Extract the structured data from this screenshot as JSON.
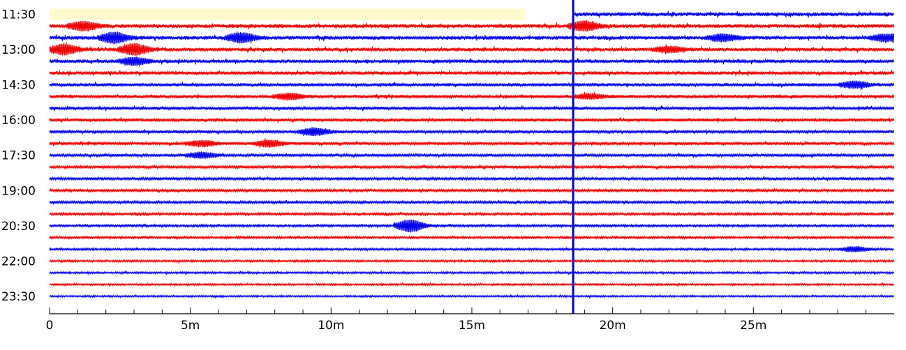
{
  "chart_data": {
    "type": "line",
    "title": "",
    "xlabel": "",
    "ylabel": "",
    "x_unit": "minutes",
    "xlim": [
      0,
      30
    ],
    "x_major_ticks": [
      0,
      5,
      10,
      15,
      20,
      25
    ],
    "x_major_labels": [
      "0",
      "5m",
      "10m",
      "15m",
      "20m",
      "25m"
    ],
    "x_minor_tick_step": 1,
    "row_interval_minutes": 30,
    "row_start_times": [
      "11:30",
      "12:00",
      "12:30",
      "13:00",
      "13:30",
      "14:00",
      "14:30",
      "15:00",
      "15:30",
      "16:00",
      "16:30",
      "17:00",
      "17:30",
      "18:00",
      "18:30",
      "19:00",
      "19:30",
      "20:00",
      "20:30",
      "21:00",
      "21:30",
      "22:00",
      "22:30",
      "23:00",
      "23:30"
    ],
    "y_tick_labels": [
      "11:30",
      "13:00",
      "14:30",
      "16:00",
      "17:30",
      "19:00",
      "20:30",
      "22:00",
      "23:30"
    ],
    "row_colors": [
      "#0000ee",
      "#ee0000"
    ],
    "colors": {
      "trace_blue": "#0000ee",
      "trace_red": "#ee0000",
      "cursor": "#0000cc",
      "no_data": "#fffacd",
      "axis": "#000000"
    },
    "no_data_gap": {
      "row": "11:30",
      "x_start": 0,
      "x_end": 16.9
    },
    "current_time_marker_minute": 18.6,
    "grid": false,
    "legend": "none",
    "events": [
      {
        "row": "12:00",
        "minute": 1.2,
        "amplitude": 2.5
      },
      {
        "row": "12:00",
        "minute": 19.0,
        "amplitude": 2.6
      },
      {
        "row": "12:30",
        "minute": 2.3,
        "amplitude": 3.0
      },
      {
        "row": "12:30",
        "minute": 6.8,
        "amplitude": 2.6
      },
      {
        "row": "12:30",
        "minute": 23.9,
        "amplitude": 1.8
      },
      {
        "row": "12:30",
        "minute": 29.7,
        "amplitude": 1.9
      },
      {
        "row": "13:00",
        "minute": 0.5,
        "amplitude": 2.8
      },
      {
        "row": "13:00",
        "minute": 3.0,
        "amplitude": 3.0
      },
      {
        "row": "13:00",
        "minute": 22.0,
        "amplitude": 1.5
      },
      {
        "row": "13:30",
        "minute": 3.0,
        "amplitude": 2.0
      },
      {
        "row": "14:30",
        "minute": 28.6,
        "amplitude": 1.8
      },
      {
        "row": "15:00",
        "minute": 8.5,
        "amplitude": 1.6
      },
      {
        "row": "15:00",
        "minute": 19.2,
        "amplitude": 1.3
      },
      {
        "row": "16:30",
        "minute": 9.4,
        "amplitude": 2.0
      },
      {
        "row": "17:00",
        "minute": 5.4,
        "amplitude": 1.6
      },
      {
        "row": "17:00",
        "minute": 7.8,
        "amplitude": 1.8
      },
      {
        "row": "17:30",
        "minute": 5.4,
        "amplitude": 1.6
      },
      {
        "row": "20:30",
        "minute": 12.8,
        "amplitude": 3.5
      },
      {
        "row": "21:30",
        "minute": 28.6,
        "amplitude": 1.4
      }
    ],
    "series_start": {
      "row": "11:30",
      "minute": 18.6
    }
  }
}
